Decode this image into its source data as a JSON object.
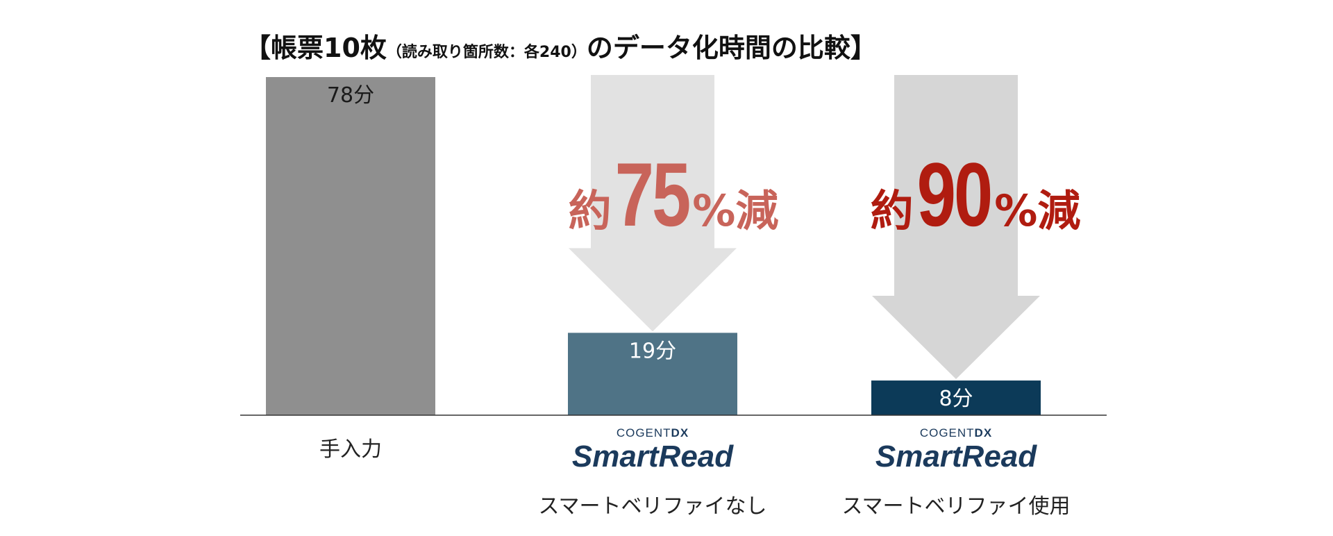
{
  "title": {
    "main_before": "【帳票10枚",
    "sub": "（読み取り箇所数：各240）",
    "main_after": "のデータ化時間の比較】"
  },
  "chart_data": {
    "type": "bar",
    "categories": [
      "手入力",
      "スマートベリファイなし",
      "スマートベリファイ使用"
    ],
    "values": [
      78,
      19,
      8
    ],
    "unit": "分",
    "value_labels": [
      "78分",
      "19分",
      "8分"
    ],
    "ylim": [
      0,
      78
    ],
    "colors": [
      "#8f8f8f",
      "#4f7386",
      "#0c3a58"
    ],
    "grid": false,
    "annotations": [
      {
        "target": 1,
        "prefix": "約",
        "number": "75",
        "percent": "%",
        "suffix": "減",
        "color": "#c8645a"
      },
      {
        "target": 2,
        "prefix": "約",
        "number": "90",
        "percent": "%",
        "suffix": "減",
        "color": "#b01c10"
      }
    ]
  },
  "logos": [
    {
      "top": "COGENT",
      "top_bold": "DX",
      "main": "SmartRead"
    },
    {
      "top": "COGENT",
      "top_bold": "DX",
      "main": "SmartRead"
    }
  ],
  "arrow_colors": [
    "#e2e2e2",
    "#d6d6d6"
  ]
}
